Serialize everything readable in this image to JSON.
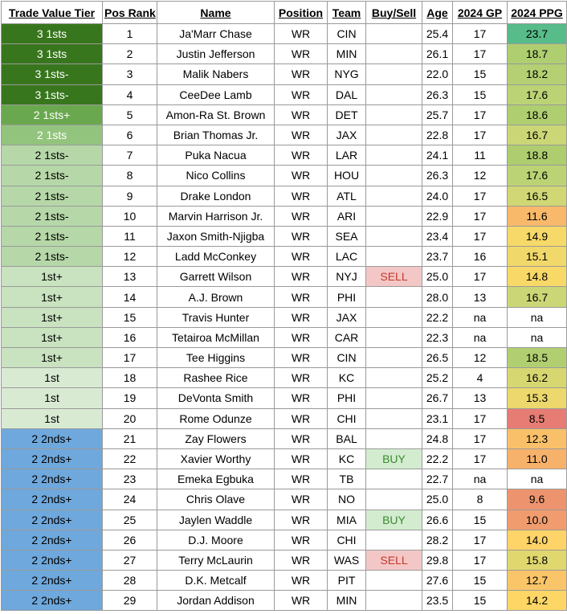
{
  "headers": [
    "Trade Value Tier",
    "Pos Rank",
    "Name",
    "Position",
    "Team",
    "Buy/Sell",
    "Age",
    "2024 GP",
    "2024 PPG"
  ],
  "tier_colors": {
    "3 1sts": "#38761d",
    "3 1sts-": "#38761d",
    "2 1sts+": "#6aa84f",
    "2 1sts": "#93c47d",
    "2 1sts-": "#b6d7a8",
    "1st+": "#c9e2bf",
    "1st": "#d9ead3",
    "2 2nds+": "#6fa8dc"
  },
  "tier_text_colors": {
    "3 1sts": "#ffffff",
    "3 1sts-": "#ffffff",
    "2 1sts+": "#ffffff",
    "2 1sts": "#ffffff",
    "2 1sts-": "#000000",
    "1st+": "#000000",
    "1st": "#000000",
    "2 2nds+": "#000000"
  },
  "rows": [
    {
      "tier": "3 1sts",
      "rank": "1",
      "name": "Ja'Marr Chase",
      "position": "WR",
      "team": "CIN",
      "buy_sell": "",
      "age": "25.4",
      "gp": "17",
      "ppg": "23.7"
    },
    {
      "tier": "3 1sts",
      "rank": "2",
      "name": "Justin Jefferson",
      "position": "WR",
      "team": "MIN",
      "buy_sell": "",
      "age": "26.1",
      "gp": "17",
      "ppg": "18.7"
    },
    {
      "tier": "3 1sts-",
      "rank": "3",
      "name": "Malik Nabers",
      "position": "WR",
      "team": "NYG",
      "buy_sell": "",
      "age": "22.0",
      "gp": "15",
      "ppg": "18.2"
    },
    {
      "tier": "3 1sts-",
      "rank": "4",
      "name": "CeeDee Lamb",
      "position": "WR",
      "team": "DAL",
      "buy_sell": "",
      "age": "26.3",
      "gp": "15",
      "ppg": "17.6"
    },
    {
      "tier": "2 1sts+",
      "rank": "5",
      "name": "Amon-Ra St. Brown",
      "position": "WR",
      "team": "DET",
      "buy_sell": "",
      "age": "25.7",
      "gp": "17",
      "ppg": "18.6"
    },
    {
      "tier": "2 1sts",
      "rank": "6",
      "name": "Brian Thomas Jr.",
      "position": "WR",
      "team": "JAX",
      "buy_sell": "",
      "age": "22.8",
      "gp": "17",
      "ppg": "16.7"
    },
    {
      "tier": "2 1sts-",
      "rank": "7",
      "name": "Puka Nacua",
      "position": "WR",
      "team": "LAR",
      "buy_sell": "",
      "age": "24.1",
      "gp": "11",
      "ppg": "18.8"
    },
    {
      "tier": "2 1sts-",
      "rank": "8",
      "name": "Nico Collins",
      "position": "WR",
      "team": "HOU",
      "buy_sell": "",
      "age": "26.3",
      "gp": "12",
      "ppg": "17.6"
    },
    {
      "tier": "2 1sts-",
      "rank": "9",
      "name": "Drake London",
      "position": "WR",
      "team": "ATL",
      "buy_sell": "",
      "age": "24.0",
      "gp": "17",
      "ppg": "16.5"
    },
    {
      "tier": "2 1sts-",
      "rank": "10",
      "name": "Marvin Harrison Jr.",
      "position": "WR",
      "team": "ARI",
      "buy_sell": "",
      "age": "22.9",
      "gp": "17",
      "ppg": "11.6"
    },
    {
      "tier": "2 1sts-",
      "rank": "11",
      "name": "Jaxon Smith-Njigba",
      "position": "WR",
      "team": "SEA",
      "buy_sell": "",
      "age": "23.4",
      "gp": "17",
      "ppg": "14.9"
    },
    {
      "tier": "2 1sts-",
      "rank": "12",
      "name": "Ladd McConkey",
      "position": "WR",
      "team": "LAC",
      "buy_sell": "",
      "age": "23.7",
      "gp": "16",
      "ppg": "15.1"
    },
    {
      "tier": "1st+",
      "rank": "13",
      "name": "Garrett Wilson",
      "position": "WR",
      "team": "NYJ",
      "buy_sell": "SELL",
      "age": "25.0",
      "gp": "17",
      "ppg": "14.8"
    },
    {
      "tier": "1st+",
      "rank": "14",
      "name": "A.J. Brown",
      "position": "WR",
      "team": "PHI",
      "buy_sell": "",
      "age": "28.0",
      "gp": "13",
      "ppg": "16.7"
    },
    {
      "tier": "1st+",
      "rank": "15",
      "name": "Travis Hunter",
      "position": "WR",
      "team": "JAX",
      "buy_sell": "",
      "age": "22.2",
      "gp": "na",
      "ppg": "na"
    },
    {
      "tier": "1st+",
      "rank": "16",
      "name": "Tetairoa McMillan",
      "position": "WR",
      "team": "CAR",
      "buy_sell": "",
      "age": "22.3",
      "gp": "na",
      "ppg": "na"
    },
    {
      "tier": "1st+",
      "rank": "17",
      "name": "Tee Higgins",
      "position": "WR",
      "team": "CIN",
      "buy_sell": "",
      "age": "26.5",
      "gp": "12",
      "ppg": "18.5"
    },
    {
      "tier": "1st",
      "rank": "18",
      "name": "Rashee Rice",
      "position": "WR",
      "team": "KC",
      "buy_sell": "",
      "age": "25.2",
      "gp": "4",
      "ppg": "16.2"
    },
    {
      "tier": "1st",
      "rank": "19",
      "name": "DeVonta Smith",
      "position": "WR",
      "team": "PHI",
      "buy_sell": "",
      "age": "26.7",
      "gp": "13",
      "ppg": "15.3"
    },
    {
      "tier": "1st",
      "rank": "20",
      "name": "Rome Odunze",
      "position": "WR",
      "team": "CHI",
      "buy_sell": "",
      "age": "23.1",
      "gp": "17",
      "ppg": "8.5"
    },
    {
      "tier": "2 2nds+",
      "rank": "21",
      "name": "Zay Flowers",
      "position": "WR",
      "team": "BAL",
      "buy_sell": "",
      "age": "24.8",
      "gp": "17",
      "ppg": "12.3"
    },
    {
      "tier": "2 2nds+",
      "rank": "22",
      "name": "Xavier Worthy",
      "position": "WR",
      "team": "KC",
      "buy_sell": "BUY",
      "age": "22.2",
      "gp": "17",
      "ppg": "11.0"
    },
    {
      "tier": "2 2nds+",
      "rank": "23",
      "name": "Emeka Egbuka",
      "position": "WR",
      "team": "TB",
      "buy_sell": "",
      "age": "22.7",
      "gp": "na",
      "ppg": "na"
    },
    {
      "tier": "2 2nds+",
      "rank": "24",
      "name": "Chris Olave",
      "position": "WR",
      "team": "NO",
      "buy_sell": "",
      "age": "25.0",
      "gp": "8",
      "ppg": "9.6"
    },
    {
      "tier": "2 2nds+",
      "rank": "25",
      "name": "Jaylen Waddle",
      "position": "WR",
      "team": "MIA",
      "buy_sell": "BUY",
      "age": "26.6",
      "gp": "15",
      "ppg": "10.0"
    },
    {
      "tier": "2 2nds+",
      "rank": "26",
      "name": "D.J. Moore",
      "position": "WR",
      "team": "CHI",
      "buy_sell": "",
      "age": "28.2",
      "gp": "17",
      "ppg": "14.0"
    },
    {
      "tier": "2 2nds+",
      "rank": "27",
      "name": "Terry McLaurin",
      "position": "WR",
      "team": "WAS",
      "buy_sell": "SELL",
      "age": "29.8",
      "gp": "17",
      "ppg": "15.8"
    },
    {
      "tier": "2 2nds+",
      "rank": "28",
      "name": "D.K. Metcalf",
      "position": "WR",
      "team": "PIT",
      "buy_sell": "",
      "age": "27.6",
      "gp": "15",
      "ppg": "12.7"
    },
    {
      "tier": "2 2nds+",
      "rank": "29",
      "name": "Jordan Addison",
      "position": "WR",
      "team": "MIN",
      "buy_sell": "",
      "age": "23.5",
      "gp": "15",
      "ppg": "14.2"
    }
  ]
}
